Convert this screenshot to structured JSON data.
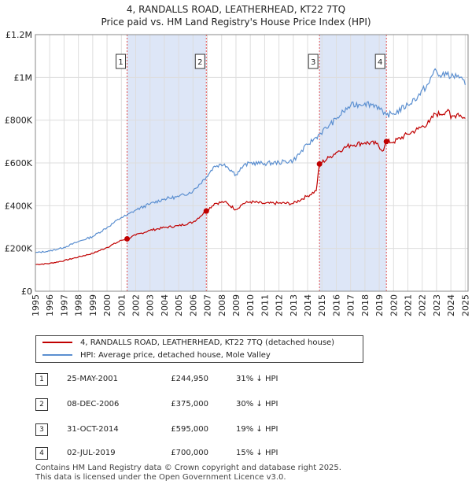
{
  "title_line1": "4, RANDALLS ROAD, LEATHERHEAD, KT22 7TQ",
  "title_line2": "Price paid vs. HM Land Registry's House Price Index (HPI)",
  "colors": {
    "property": "#c00000",
    "hpi": "#5b8fd0",
    "shade": "#dde6f7",
    "grid": "#dddddd",
    "marker_line": "#e05050"
  },
  "chart_data": {
    "type": "line",
    "xlim": [
      1995,
      2025.2
    ],
    "ylim": [
      0,
      1200000
    ],
    "y_ticks": [
      {
        "value": 0,
        "label": "£0"
      },
      {
        "value": 200000,
        "label": "£200K"
      },
      {
        "value": 400000,
        "label": "£400K"
      },
      {
        "value": 600000,
        "label": "£600K"
      },
      {
        "value": 800000,
        "label": "£800K"
      },
      {
        "value": 1000000,
        "label": "£1M"
      },
      {
        "value": 1200000,
        "label": "£1.2M"
      }
    ],
    "x_ticks": [
      "1995",
      "1996",
      "1997",
      "1998",
      "1999",
      "2000",
      "2001",
      "2002",
      "2003",
      "2004",
      "2005",
      "2006",
      "2007",
      "2008",
      "2009",
      "2010",
      "2011",
      "2012",
      "2013",
      "2014",
      "2015",
      "2016",
      "2017",
      "2018",
      "2019",
      "2020",
      "2021",
      "2022",
      "2023",
      "2024",
      "2025"
    ],
    "shaded_periods": [
      [
        2001.4,
        2006.93
      ],
      [
        2014.83,
        2019.5
      ]
    ],
    "series": [
      {
        "name": "4, RANDALLS ROAD, LEATHERHEAD, KT22 7TQ (detached house)",
        "color": "#c00000",
        "x": [
          1995.0,
          1996.0,
          1997.0,
          1998.0,
          1999.0,
          2000.0,
          2001.0,
          2001.4,
          2002.0,
          2003.0,
          2004.0,
          2005.0,
          2006.0,
          2006.93,
          2007.5,
          2008.2,
          2009.0,
          2009.5,
          2010.0,
          2011.0,
          2012.0,
          2013.0,
          2014.0,
          2014.6,
          2014.83,
          2015.5,
          2016.0,
          2016.5,
          2017.0,
          2018.0,
          2018.8,
          2019.3,
          2019.5,
          2020.0,
          2021.0,
          2021.7,
          2022.5,
          2022.9,
          2023.3,
          2023.8,
          2024.0,
          2024.5,
          2025.0
        ],
        "y": [
          125000,
          130000,
          143000,
          160000,
          177000,
          205000,
          238000,
          244950,
          262000,
          285000,
          298000,
          306000,
          323000,
          375000,
          410000,
          418000,
          382000,
          410000,
          418000,
          410000,
          412000,
          410000,
          446000,
          470000,
          595000,
          625000,
          650000,
          668000,
          684000,
          695000,
          690000,
          658000,
          700000,
          698000,
          735000,
          758000,
          790000,
          830000,
          828000,
          850000,
          808000,
          832000,
          808000
        ]
      },
      {
        "name": "HPI: Average price, detached house, Mole Valley",
        "color": "#5b8fd0",
        "x": [
          1995.0,
          1996.0,
          1997.0,
          1998.0,
          1999.0,
          2000.0,
          2001.0,
          2001.4,
          2002.0,
          2003.0,
          2004.0,
          2005.0,
          2006.0,
          2006.93,
          2007.5,
          2008.2,
          2009.0,
          2009.5,
          2010.0,
          2011.0,
          2012.0,
          2013.0,
          2014.0,
          2014.6,
          2014.83,
          2015.5,
          2016.0,
          2016.5,
          2017.0,
          2018.0,
          2018.8,
          2019.3,
          2019.5,
          2020.0,
          2021.0,
          2021.7,
          2022.5,
          2022.9,
          2023.3,
          2023.8,
          2024.0,
          2024.5,
          2025.0
        ],
        "y": [
          180000,
          188000,
          205000,
          232000,
          256000,
          298000,
          345000,
          355000,
          380000,
          408000,
          432000,
          442000,
          468000,
          535000,
          585000,
          595000,
          545000,
          585000,
          600000,
          597000,
          602000,
          611000,
          686000,
          720000,
          735000,
          775000,
          805000,
          840000,
          868000,
          880000,
          870000,
          828000,
          825000,
          830000,
          872000,
          912000,
          975000,
          1040000,
          1000000,
          1025000,
          1000000,
          1010000,
          965000
        ]
      }
    ],
    "sales": [
      {
        "n": "1",
        "x": 2001.4,
        "y": 244950,
        "date": "25-MAY-2001",
        "price": "£244,950",
        "hpi": "31% ↓ HPI"
      },
      {
        "n": "2",
        "x": 2006.93,
        "y": 375000,
        "date": "08-DEC-2006",
        "price": "£375,000",
        "hpi": "30% ↓ HPI"
      },
      {
        "n": "3",
        "x": 2014.83,
        "y": 595000,
        "date": "31-OCT-2014",
        "price": "£595,000",
        "hpi": "19% ↓ HPI"
      },
      {
        "n": "4",
        "x": 2019.5,
        "y": 700000,
        "date": "02-JUL-2019",
        "price": "£700,000",
        "hpi": "15% ↓ HPI"
      }
    ]
  },
  "legend": {
    "property_label": "4, RANDALLS ROAD, LEATHERHEAD, KT22 7TQ (detached house)",
    "hpi_label": "HPI: Average price, detached house, Mole Valley"
  },
  "sales_table": [
    {
      "n": "1",
      "date": "25-MAY-2001",
      "price": "£244,950",
      "hpi": "31% ↓ HPI"
    },
    {
      "n": "2",
      "date": "08-DEC-2006",
      "price": "£375,000",
      "hpi": "30% ↓ HPI"
    },
    {
      "n": "3",
      "date": "31-OCT-2014",
      "price": "£595,000",
      "hpi": "19% ↓ HPI"
    },
    {
      "n": "4",
      "date": "02-JUL-2019",
      "price": "£700,000",
      "hpi": "15% ↓ HPI"
    }
  ],
  "footer_line1": "Contains HM Land Registry data © Crown copyright and database right 2025.",
  "footer_line2": "This data is licensed under the Open Government Licence v3.0."
}
